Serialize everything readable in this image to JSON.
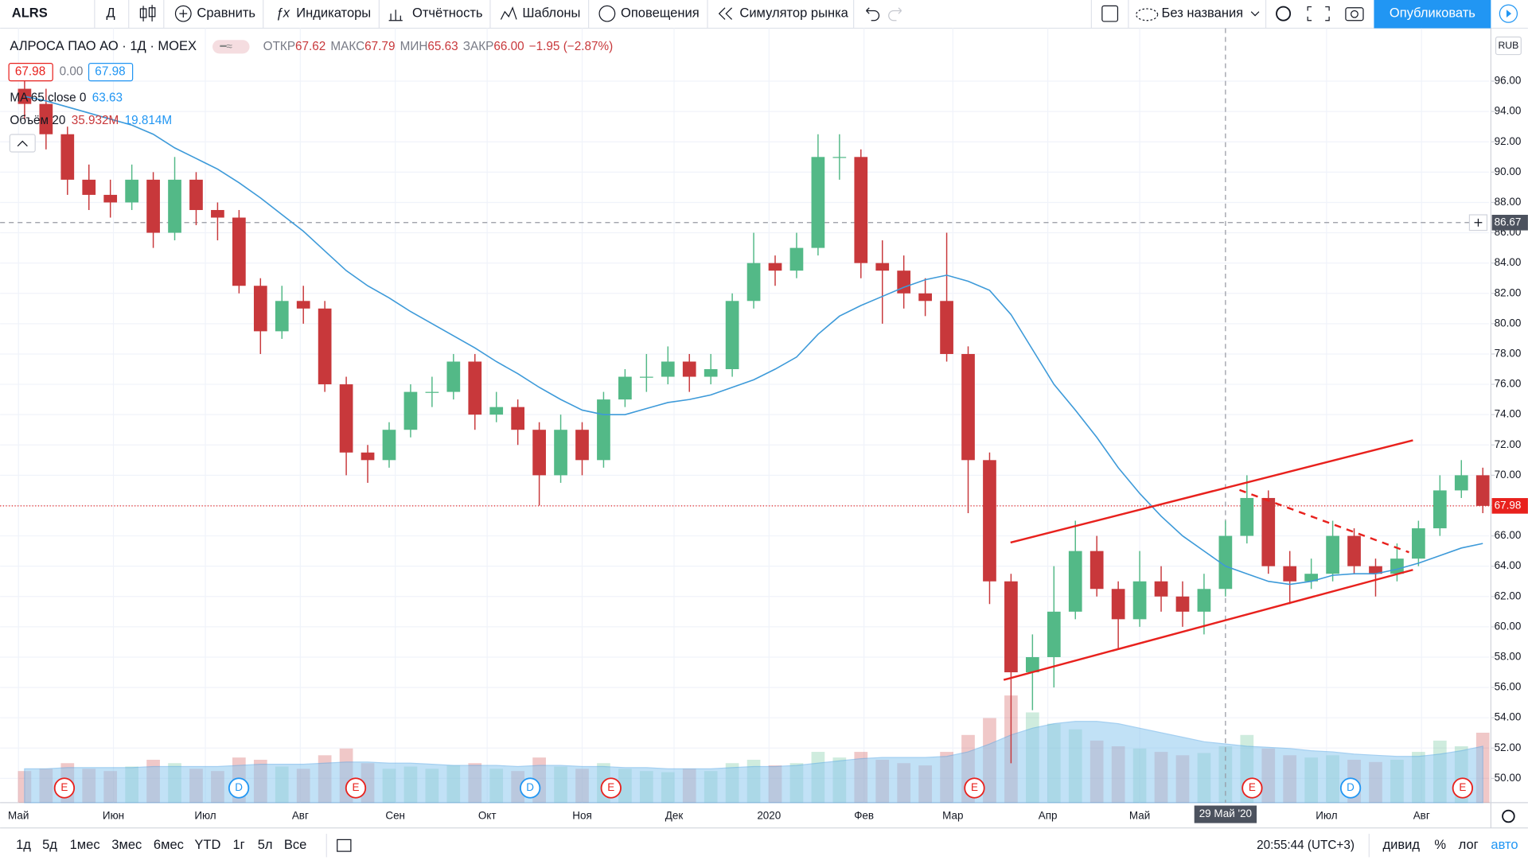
{
  "toolbar": {
    "symbol": "ALRS",
    "interval": "Д",
    "items": [
      "Сравнить",
      "Индикаторы",
      "Отчётность",
      "Шаблоны",
      "Оповещения",
      "Симулятор рынка"
    ],
    "layout_name": "Без названия",
    "publish": "Опубликовать"
  },
  "legend": {
    "open_label": "ОТКР",
    "open": "67.62",
    "high_label": "МАКС",
    "high": "67.79",
    "low_label": "МИН",
    "low": "65.63",
    "close_label": "ЗАКР",
    "close": "66.00",
    "change": "−1.95 (−2.87%)",
    "bid": "67.98",
    "spread": "0.00",
    "ask": "67.98"
  },
  "chart_data": {
    "type": "candlestick",
    "title": "АЛРОСА ПАО АО · 1Д · MOEX",
    "currency": "RUB",
    "x": [
      "2019-05-03",
      "2019-05-10",
      "2019-05-17",
      "2019-05-24",
      "2019-05-31",
      "2019-06-07",
      "2019-06-14",
      "2019-06-21",
      "2019-06-28",
      "2019-07-05",
      "2019-07-12",
      "2019-07-19",
      "2019-07-26",
      "2019-08-02",
      "2019-08-09",
      "2019-08-16",
      "2019-08-23",
      "2019-08-30",
      "2019-09-06",
      "2019-09-13",
      "2019-09-20",
      "2019-09-27",
      "2019-10-04",
      "2019-10-11",
      "2019-10-18",
      "2019-10-25",
      "2019-11-01",
      "2019-11-08",
      "2019-11-15",
      "2019-11-22",
      "2019-11-29",
      "2019-12-06",
      "2019-12-13",
      "2019-12-20",
      "2019-12-27",
      "2020-01-03",
      "2020-01-10",
      "2020-01-17",
      "2020-01-24",
      "2020-01-31",
      "2020-02-07",
      "2020-02-14",
      "2020-02-21",
      "2020-02-28",
      "2020-03-06",
      "2020-03-13",
      "2020-03-20",
      "2020-03-27",
      "2020-04-03",
      "2020-04-10",
      "2020-04-17",
      "2020-04-24",
      "2020-05-01",
      "2020-05-08",
      "2020-05-15",
      "2020-05-22",
      "2020-05-29",
      "2020-06-05",
      "2020-06-12",
      "2020-06-19",
      "2020-06-26",
      "2020-07-03",
      "2020-07-10",
      "2020-07-17",
      "2020-07-24",
      "2020-07-31",
      "2020-08-07",
      "2020-08-14",
      "2020-08-21"
    ],
    "open": [
      95.5,
      94.5,
      92.5,
      89.5,
      88.5,
      88,
      89.5,
      86,
      89.5,
      87.5,
      87,
      82.5,
      79.5,
      81.5,
      81,
      76,
      71.5,
      71,
      73,
      75.5,
      75.5,
      77.5,
      74,
      74.5,
      73,
      70,
      73,
      71,
      75,
      76.5,
      76.5,
      77.5,
      76.5,
      77,
      81.5,
      84,
      83.5,
      85,
      91,
      91,
      84,
      83.5,
      82,
      81.5,
      78,
      71,
      63,
      57,
      58,
      61,
      65,
      62.5,
      60.5,
      63,
      62,
      61,
      62.5,
      66,
      68.5,
      64,
      63,
      63.5,
      66,
      64,
      63.5,
      64.5,
      66.5,
      69,
      70
    ],
    "high": [
      96,
      95.5,
      93,
      90.5,
      89.5,
      90.5,
      90,
      91,
      90,
      88,
      87.5,
      83,
      82.5,
      82.5,
      81.5,
      76.5,
      72,
      73.5,
      76,
      76.5,
      78,
      78,
      75.5,
      75,
      73.5,
      74,
      73.5,
      75.5,
      77,
      78,
      78.5,
      78,
      78,
      82,
      86,
      84.5,
      86,
      92.5,
      92.5,
      91.5,
      85.5,
      84.5,
      83,
      86,
      78.5,
      71.5,
      63.5,
      59.5,
      64,
      67,
      66,
      63,
      65,
      64,
      63,
      63.5,
      67,
      70,
      69,
      65,
      64.5,
      67,
      66.5,
      64.5,
      65.5,
      67,
      70,
      71,
      70.5
    ],
    "low": [
      93.5,
      91.5,
      88.5,
      87.5,
      87,
      87.5,
      85,
      85.5,
      86.5,
      85.5,
      82,
      78,
      79,
      80,
      75.5,
      70,
      69.5,
      70.5,
      72.5,
      74.5,
      75,
      73,
      73.5,
      72,
      68,
      69.5,
      70,
      70.5,
      74.5,
      75.5,
      76,
      75.5,
      76,
      76.5,
      81,
      82.5,
      83,
      84.5,
      89.5,
      83,
      80,
      81,
      80.5,
      77.5,
      67.5,
      61.5,
      51,
      54.5,
      56,
      60.5,
      62,
      58.5,
      60,
      61,
      60,
      59.5,
      62,
      65.5,
      63.5,
      61.5,
      62.5,
      63,
      63.5,
      62,
      63,
      64,
      66,
      68.5,
      67.5
    ],
    "close": [
      94.5,
      92.5,
      89.5,
      88.5,
      88,
      89.5,
      86,
      89.5,
      87.5,
      87,
      82.5,
      79.5,
      81.5,
      81,
      76,
      71.5,
      71,
      73,
      75.5,
      75.5,
      77.5,
      74,
      74.5,
      73,
      70,
      73,
      71,
      75,
      76.5,
      76.5,
      77.5,
      76.5,
      77,
      81.5,
      84,
      83.5,
      85,
      91,
      91,
      84,
      83.5,
      82,
      81.5,
      78,
      71,
      63,
      57,
      58,
      61,
      65,
      62.5,
      60.5,
      63,
      62,
      61,
      62.5,
      66,
      68.5,
      64,
      63,
      63.5,
      66,
      64,
      63.5,
      64.5,
      66.5,
      69,
      70,
      67.98
    ],
    "up_color": "#53b987",
    "down_color": "#c8383b",
    "overlays": [
      {
        "name": "MA 65 close 0",
        "color": "#3d9ad9",
        "value": 63.63,
        "values": [
          95,
          94.7,
          94.3,
          93.9,
          93.5,
          93.1,
          92.5,
          91.6,
          90.9,
          90.2,
          89.3,
          88.3,
          87.2,
          86.1,
          84.8,
          83.5,
          82.5,
          81.7,
          80.8,
          80,
          79.2,
          78.4,
          77.5,
          76.7,
          75.8,
          75,
          74.3,
          74,
          74,
          74.4,
          74.8,
          75,
          75.3,
          75.8,
          76.3,
          77,
          77.8,
          79.3,
          80.5,
          81.2,
          81.8,
          82.4,
          82.9,
          83.2,
          82.8,
          82.2,
          80.6,
          78.3,
          76,
          74.3,
          72.5,
          70.5,
          68.8,
          67.3,
          66,
          65,
          64,
          63.5,
          63,
          62.8,
          63,
          63.4,
          63.5,
          63.5,
          63.8,
          64.2,
          64.7,
          65.2,
          65.5
        ]
      }
    ],
    "volume": {
      "name": "Объём 20",
      "labels": [
        "35.932M",
        "19.814M"
      ],
      "ma_color": "#8fc9f0",
      "values": [
        28,
        30,
        35,
        30,
        28,
        32,
        38,
        35,
        30,
        28,
        40,
        38,
        32,
        30,
        42,
        48,
        35,
        30,
        32,
        30,
        33,
        35,
        30,
        28,
        40,
        32,
        30,
        35,
        30,
        28,
        27,
        30,
        28,
        35,
        38,
        33,
        35,
        45,
        40,
        45,
        38,
        35,
        33,
        45,
        60,
        75,
        95,
        80,
        70,
        65,
        55,
        50,
        48,
        45,
        42,
        44,
        50,
        60,
        48,
        42,
        40,
        42,
        38,
        36,
        38,
        45,
        55,
        50,
        62
      ],
      "ma_values": [
        30,
        30,
        31,
        31,
        31,
        31,
        32,
        32,
        32,
        32,
        33,
        34,
        34,
        34,
        35,
        36,
        36,
        35,
        35,
        34,
        33,
        33,
        33,
        32,
        33,
        33,
        32,
        32,
        31,
        31,
        30,
        30,
        30,
        31,
        32,
        32,
        33,
        35,
        37,
        39,
        40,
        40,
        40,
        41,
        45,
        52,
        60,
        66,
        70,
        72,
        72,
        70,
        66,
        62,
        58,
        54,
        52,
        50,
        49,
        48,
        46,
        45,
        43,
        42,
        41,
        41,
        43,
        46,
        50
      ]
    },
    "ylim": [
      48.4,
      99.3
    ],
    "yticks": [
      {
        "value": 50,
        "label": "50.00"
      },
      {
        "value": 52,
        "label": "52.00"
      },
      {
        "value": 54,
        "label": "54.00"
      },
      {
        "value": 56,
        "label": "56.00"
      },
      {
        "value": 58,
        "label": "58.00"
      },
      {
        "value": 60,
        "label": "60.00"
      },
      {
        "value": 62,
        "label": "62.00"
      },
      {
        "value": 64,
        "label": "64.00"
      },
      {
        "value": 66,
        "label": "66.00"
      },
      {
        "value": 68,
        "label": "68.00"
      },
      {
        "value": 70,
        "label": "70.00"
      },
      {
        "value": 72,
        "label": "72.00"
      },
      {
        "value": 74,
        "label": "74.00"
      },
      {
        "value": 76,
        "label": "76.00"
      },
      {
        "value": 78,
        "label": "78.00"
      },
      {
        "value": 80,
        "label": "80.00"
      },
      {
        "value": 82,
        "label": "82.00"
      },
      {
        "value": 84,
        "label": "84.00"
      },
      {
        "value": 86,
        "label": "86.00"
      },
      {
        "value": 88,
        "label": "88.00"
      },
      {
        "value": 90,
        "label": "90.00"
      },
      {
        "value": 92,
        "label": "92.00"
      },
      {
        "value": 94,
        "label": "94.00"
      },
      {
        "value": 96,
        "label": "96.00"
      }
    ],
    "xlim": [
      "2019-04-25",
      "2020-08-23"
    ],
    "xticks": [
      {
        "value": "2019-05-01",
        "label": "Май"
      },
      {
        "value": "2019-06-01",
        "label": "Июн"
      },
      {
        "value": "2019-07-01",
        "label": "Июл"
      },
      {
        "value": "2019-08-01",
        "label": "Авг"
      },
      {
        "value": "2019-09-01",
        "label": "Сен"
      },
      {
        "value": "2019-10-01",
        "label": "Окт"
      },
      {
        "value": "2019-11-01",
        "label": "Ноя"
      },
      {
        "value": "2019-12-01",
        "label": "Дек"
      },
      {
        "value": "2020-01-01",
        "label": "2020"
      },
      {
        "value": "2020-02-01",
        "label": "Фев"
      },
      {
        "value": "2020-03-01",
        "label": "Мар"
      },
      {
        "value": "2020-04-01",
        "label": "Апр"
      },
      {
        "value": "2020-05-01",
        "label": "Май"
      },
      {
        "value": "2020-07-01",
        "label": "Июл"
      },
      {
        "value": "2020-08-01",
        "label": "Авг"
      }
    ],
    "grid": true,
    "last_price": 67.98,
    "crosshair": {
      "price": 86.67,
      "x": "2020-05-29",
      "date_label": "29 Май '20"
    },
    "events": [
      "E",
      "D",
      "E",
      "D",
      "E",
      "E",
      "E",
      "D",
      "E"
    ]
  },
  "bottom_bar": {
    "ranges": [
      "1д",
      "5д",
      "1мес",
      "3мес",
      "6мес",
      "YTD",
      "1г",
      "5л",
      "Все"
    ],
    "clock": "20:55:44 (UTC+3)",
    "options": [
      "дивид",
      "%",
      "лог",
      "авто"
    ]
  }
}
